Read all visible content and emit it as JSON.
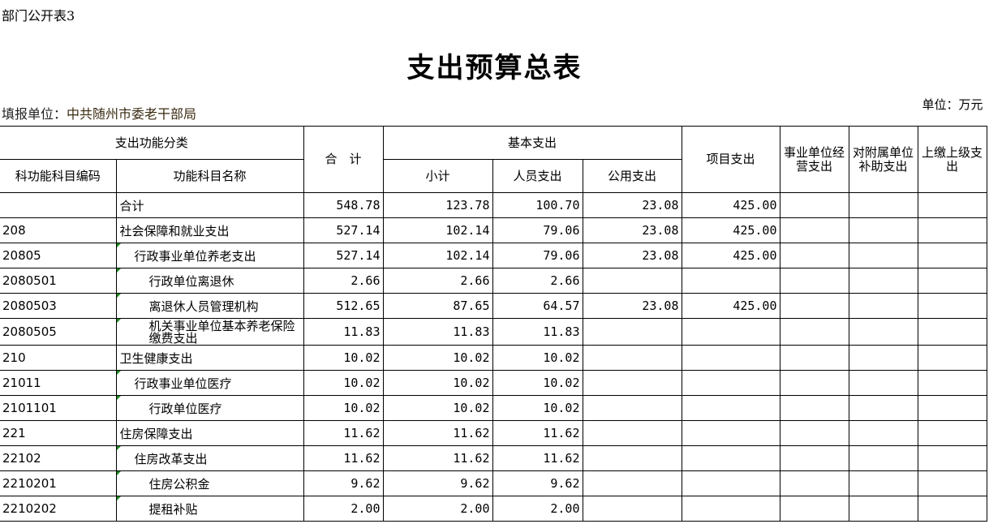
{
  "form_tag": "部门公开表3",
  "title": "支出预算总表",
  "fill_unit_label": "填报单位：",
  "fill_unit": "中共随州市委老干部局",
  "unit": "单位：万元",
  "headers": {
    "func_class": "支出功能分类",
    "code": "科功能科目编码",
    "name": "功能科目名称",
    "total": "合　计",
    "basic": "基本支出",
    "subtotal": "小计",
    "personnel": "人员支出",
    "public": "公用支出",
    "project": "项目支出",
    "business": "事业单位经营支出",
    "subsidy": "对附属单位补助支出",
    "upper": "上缴上级支出"
  },
  "colors": {
    "marker": "#1a8a1a"
  },
  "rows": [
    {
      "code": "",
      "name": "合计",
      "level": 1,
      "total": "548.78",
      "subtotal": "123.78",
      "personnel": "100.70",
      "public": "23.08",
      "project": "425.00"
    },
    {
      "code": "208",
      "name": "社会保障和就业支出",
      "level": 1,
      "total": "527.14",
      "subtotal": "102.14",
      "personnel": "79.06",
      "public": "23.08",
      "project": "425.00"
    },
    {
      "code": "20805",
      "name": "行政事业单位养老支出",
      "level": 2,
      "total": "527.14",
      "subtotal": "102.14",
      "personnel": "79.06",
      "public": "23.08",
      "project": "425.00"
    },
    {
      "code": "2080501",
      "name": "行政单位离退休",
      "level": 3,
      "total": "2.66",
      "subtotal": "2.66",
      "personnel": "2.66",
      "public": "",
      "project": ""
    },
    {
      "code": "2080503",
      "name": "离退休人员管理机构",
      "level": 3,
      "total": "512.65",
      "subtotal": "87.65",
      "personnel": "64.57",
      "public": "23.08",
      "project": "425.00"
    },
    {
      "code": "2080505",
      "name": "机关事业单位基本养老保险缴费支出",
      "level": 3,
      "total": "11.83",
      "subtotal": "11.83",
      "personnel": "11.83",
      "public": "",
      "project": ""
    },
    {
      "code": "210",
      "name": "卫生健康支出",
      "level": 1,
      "total": "10.02",
      "subtotal": "10.02",
      "personnel": "10.02",
      "public": "",
      "project": ""
    },
    {
      "code": "21011",
      "name": "行政事业单位医疗",
      "level": 2,
      "total": "10.02",
      "subtotal": "10.02",
      "personnel": "10.02",
      "public": "",
      "project": ""
    },
    {
      "code": "2101101",
      "name": "行政单位医疗",
      "level": 3,
      "total": "10.02",
      "subtotal": "10.02",
      "personnel": "10.02",
      "public": "",
      "project": ""
    },
    {
      "code": "221",
      "name": "住房保障支出",
      "level": 1,
      "total": "11.62",
      "subtotal": "11.62",
      "personnel": "11.62",
      "public": "",
      "project": ""
    },
    {
      "code": "22102",
      "name": "住房改革支出",
      "level": 2,
      "total": "11.62",
      "subtotal": "11.62",
      "personnel": "11.62",
      "public": "",
      "project": ""
    },
    {
      "code": "2210201",
      "name": "住房公积金",
      "level": 3,
      "total": "9.62",
      "subtotal": "9.62",
      "personnel": "9.62",
      "public": "",
      "project": ""
    },
    {
      "code": "2210202",
      "name": "提租补贴",
      "level": 3,
      "total": "2.00",
      "subtotal": "2.00",
      "personnel": "2.00",
      "public": "",
      "project": ""
    }
  ]
}
